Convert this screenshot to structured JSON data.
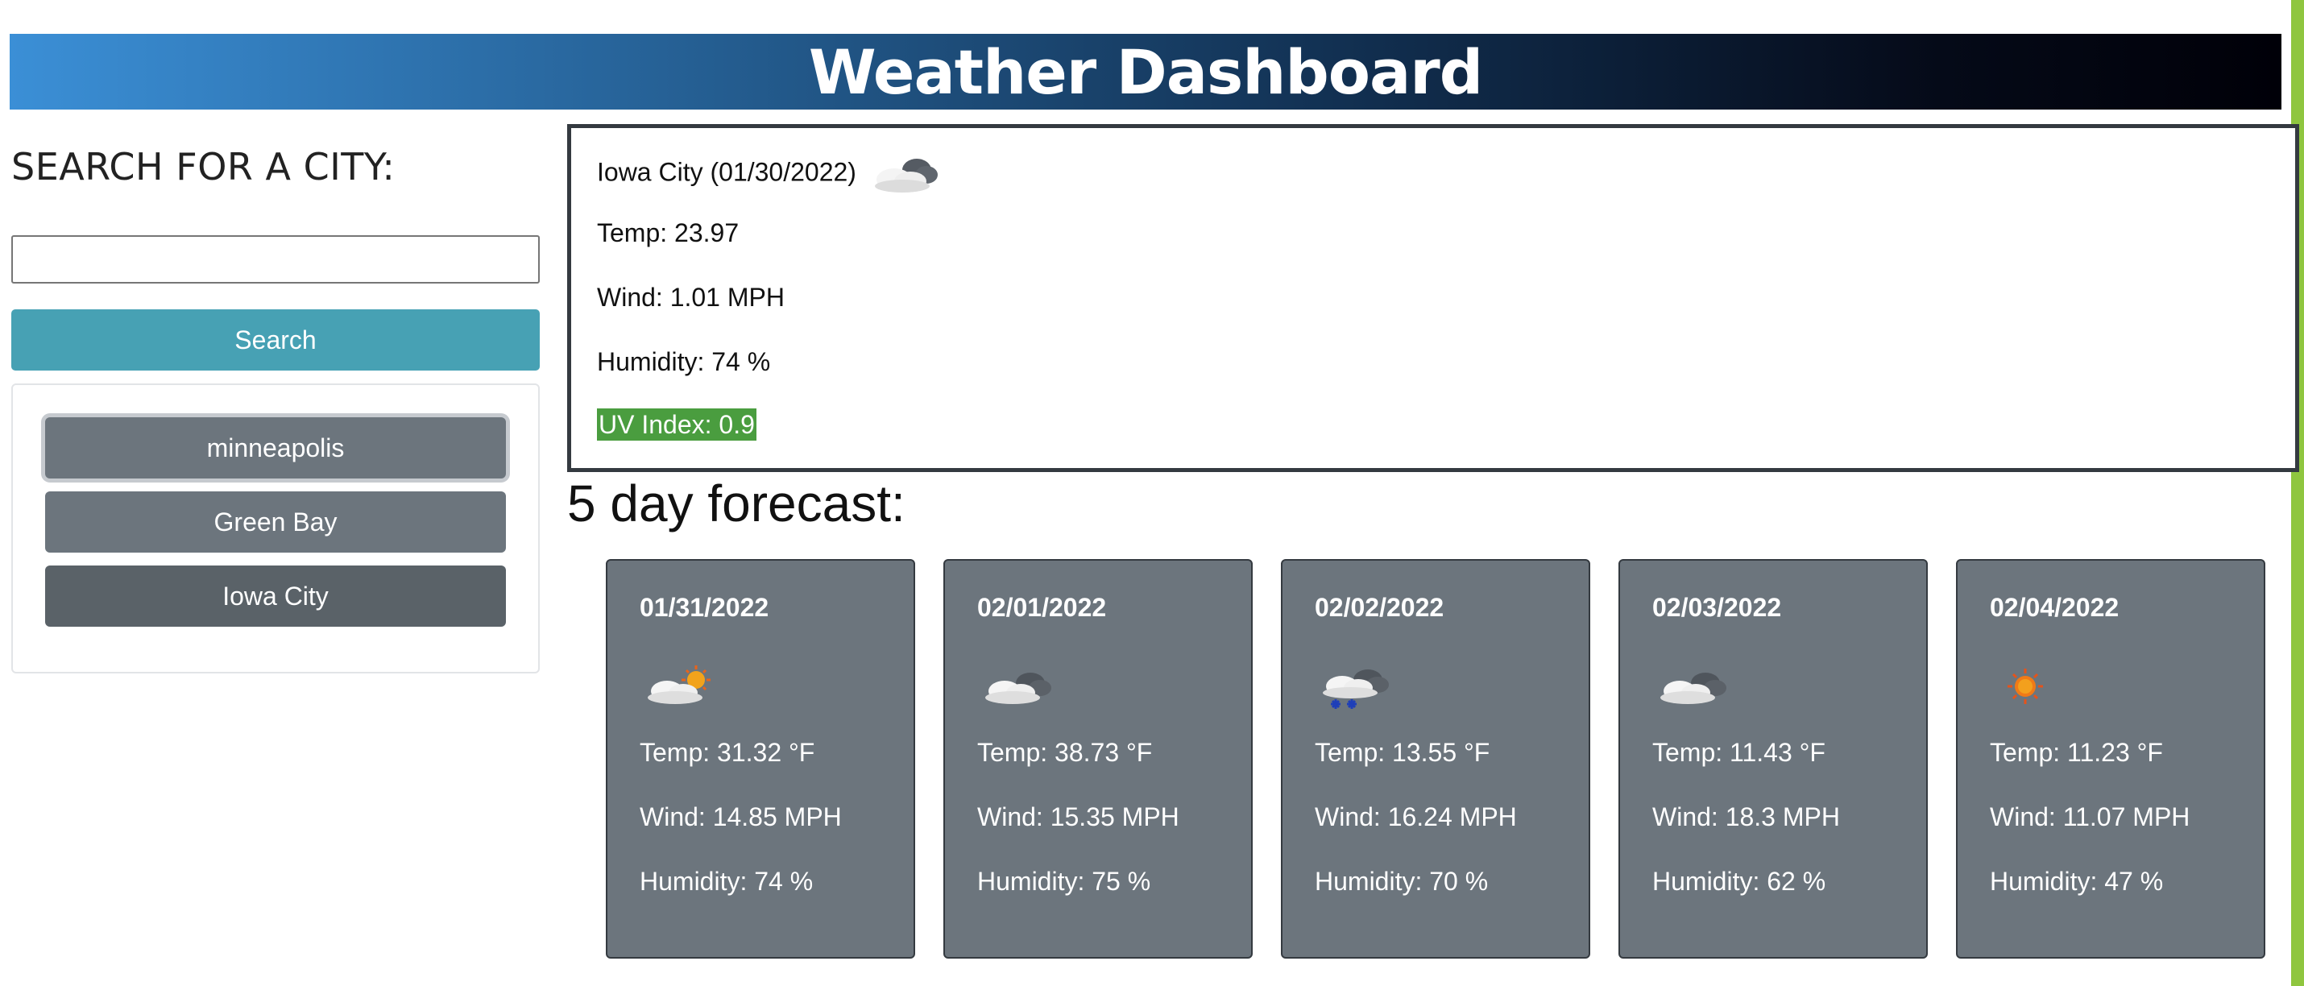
{
  "header": {
    "title": "Weather Dashboard"
  },
  "search": {
    "heading": "SEARCH FOR A CITY:",
    "input_value": "",
    "placeholder": "",
    "button_label": "Search"
  },
  "history": [
    {
      "label": "minneapolis",
      "state": "focused"
    },
    {
      "label": "Green Bay",
      "state": "normal"
    },
    {
      "label": "Iowa City",
      "state": "active"
    }
  ],
  "current": {
    "title": "Iowa City (01/30/2022)",
    "icon": "cloudy-icon",
    "temp": "Temp: 23.97",
    "wind": "Wind: 1.01 MPH",
    "humidity": "Humidity: 74 %",
    "uv": "UV Index: 0.9",
    "uv_color": "#4a9d3f"
  },
  "forecast": {
    "heading": "5 day forecast:",
    "days": [
      {
        "date": "01/31/2022",
        "icon": "partly-sunny-icon",
        "temp": "Temp: 31.32 °F",
        "wind": "Wind: 14.85 MPH",
        "humidity": "Humidity: 74 %"
      },
      {
        "date": "02/01/2022",
        "icon": "cloudy-icon",
        "temp": "Temp: 38.73 °F",
        "wind": "Wind: 15.35 MPH",
        "humidity": "Humidity: 75 %"
      },
      {
        "date": "02/02/2022",
        "icon": "snow-icon",
        "temp": "Temp: 13.55 °F",
        "wind": "Wind: 16.24 MPH",
        "humidity": "Humidity: 70 %"
      },
      {
        "date": "02/03/2022",
        "icon": "cloudy-icon",
        "temp": "Temp: 11.43 °F",
        "wind": "Wind: 18.3 MPH",
        "humidity": "Humidity: 62 %"
      },
      {
        "date": "02/04/2022",
        "icon": "sun-icon",
        "temp": "Temp: 11.23 °F",
        "wind": "Wind: 11.07 MPH",
        "humidity": "Humidity: 47 %"
      }
    ]
  },
  "colors": {
    "search_button": "#47a1b4",
    "history_button": "#6c757d",
    "card": "#6c757d"
  }
}
